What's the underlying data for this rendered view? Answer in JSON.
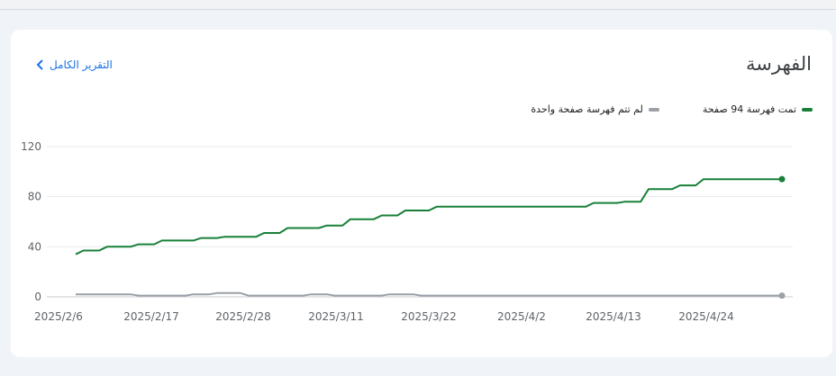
{
  "header": {
    "title": "الفهرسة",
    "report_link": "التقرير الكامل"
  },
  "icons": {
    "report_link": "chevron-left-icon"
  },
  "colors": {
    "indexed": "#188038",
    "not_indexed": "#9aa0a6",
    "grid": "#e8eaed",
    "axis_text": "#5f6368"
  },
  "chart_data": {
    "type": "line",
    "legend_position": "top-right",
    "grid": true,
    "ylim": [
      0,
      120
    ],
    "yticks": [
      0,
      40,
      80,
      120
    ],
    "x_tick_labels": [
      "2025/2/6",
      "2025/2/17",
      "2025/2/28",
      "2025/3/11",
      "2025/3/22",
      "2025/4/2",
      "2025/4/13",
      "2025/4/24"
    ],
    "series": [
      {
        "key": "indexed",
        "name": "تمت فهرسة 94 صفحة",
        "values": [
          [
            0,
            34
          ],
          [
            1,
            37
          ],
          [
            3,
            37
          ],
          [
            4,
            40
          ],
          [
            7,
            40
          ],
          [
            8,
            42
          ],
          [
            10,
            42
          ],
          [
            11,
            45
          ],
          [
            15,
            45
          ],
          [
            16,
            47
          ],
          [
            18,
            47
          ],
          [
            19,
            48
          ],
          [
            23,
            48
          ],
          [
            24,
            51
          ],
          [
            26,
            51
          ],
          [
            27,
            55
          ],
          [
            31,
            55
          ],
          [
            32,
            57
          ],
          [
            34,
            57
          ],
          [
            35,
            62
          ],
          [
            38,
            62
          ],
          [
            39,
            65
          ],
          [
            41,
            65
          ],
          [
            42,
            69
          ],
          [
            45,
            69
          ],
          [
            46,
            72
          ],
          [
            65,
            72
          ],
          [
            66,
            75
          ],
          [
            69,
            75
          ],
          [
            70,
            76
          ],
          [
            72,
            76
          ],
          [
            73,
            86
          ],
          [
            76,
            86
          ],
          [
            77,
            89
          ],
          [
            79,
            89
          ],
          [
            80,
            94
          ],
          [
            90,
            94
          ]
        ]
      },
      {
        "key": "not_indexed",
        "name": "لم تتم فهرسة صفحة واحدة",
        "values": [
          [
            0,
            2
          ],
          [
            7,
            2
          ],
          [
            8,
            1
          ],
          [
            14,
            1
          ],
          [
            15,
            2
          ],
          [
            17,
            2
          ],
          [
            18,
            3
          ],
          [
            21,
            3
          ],
          [
            22,
            1
          ],
          [
            29,
            1
          ],
          [
            30,
            2
          ],
          [
            32,
            2
          ],
          [
            33,
            1
          ],
          [
            39,
            1
          ],
          [
            40,
            2
          ],
          [
            43,
            2
          ],
          [
            44,
            1
          ],
          [
            90,
            1
          ]
        ]
      }
    ]
  }
}
